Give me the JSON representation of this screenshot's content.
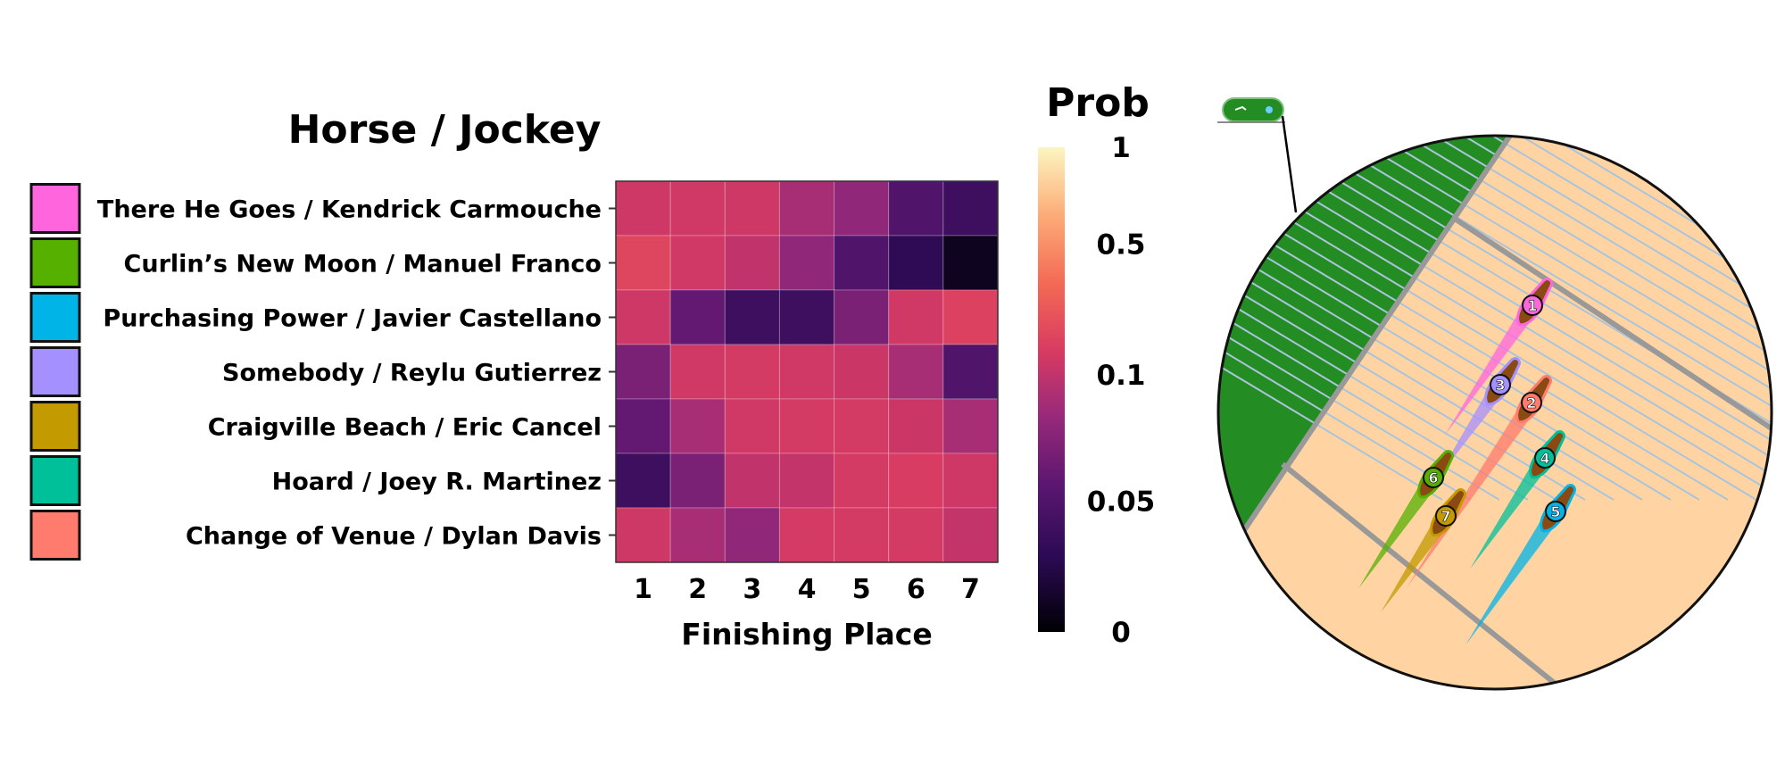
{
  "chart_data": {
    "type": "heatmap",
    "title": "Horse / Jockey",
    "xlabel": "Finishing Place",
    "x": [
      "1",
      "2",
      "3",
      "4",
      "5",
      "6",
      "7"
    ],
    "rows": [
      {
        "label": "There He Goes / Kendrick Carmouche",
        "swatch": "#ff66dd",
        "values": [
          0.14,
          0.15,
          0.14,
          0.09,
          0.08,
          0.05,
          0.04
        ]
      },
      {
        "label": "Curlin’s New Moon / Manuel Franco",
        "swatch": "#55b000",
        "values": [
          0.22,
          0.15,
          0.1,
          0.08,
          0.05,
          0.03,
          0.01
        ]
      },
      {
        "label": "Purchasing Power / Javier Castellano",
        "swatch": "#00b4e8",
        "values": [
          0.14,
          0.06,
          0.04,
          0.04,
          0.07,
          0.15,
          0.2
        ]
      },
      {
        "label": "Somebody / Reylu Gutierrez",
        "swatch": "#a590ff",
        "values": [
          0.07,
          0.15,
          0.16,
          0.15,
          0.13,
          0.09,
          0.05
        ]
      },
      {
        "label": "Craigville Beach / Eric Cancel",
        "swatch": "#c39a00",
        "values": [
          0.06,
          0.09,
          0.15,
          0.16,
          0.16,
          0.13,
          0.09
        ]
      },
      {
        "label": "Hoard / Joey R. Martinez",
        "swatch": "#00c09a",
        "values": [
          0.04,
          0.07,
          0.1,
          0.11,
          0.16,
          0.18,
          0.14
        ]
      },
      {
        "label": "Change of Venue / Dylan Davis",
        "swatch": "#ff7b6e",
        "values": [
          0.14,
          0.09,
          0.08,
          0.16,
          0.16,
          0.16,
          0.11
        ]
      }
    ],
    "colorbar": {
      "title": "Prob",
      "ticks": [
        {
          "label": "1",
          "value": 1
        },
        {
          "label": "0.5",
          "value": 0.5
        },
        {
          "label": "0.1",
          "value": 0.1
        },
        {
          "label": "0.05",
          "value": 0.05
        },
        {
          "label": "0",
          "value": 0
        }
      ]
    }
  },
  "track_view": {
    "infield_color": "#238c22",
    "track_color": "#ffd4a2",
    "horses": [
      {
        "number": "1",
        "color": "#ff66dd"
      },
      {
        "number": "2",
        "color": "#ff7b6e"
      },
      {
        "number": "3",
        "color": "#a590ff"
      },
      {
        "number": "4",
        "color": "#00c09a"
      },
      {
        "number": "5",
        "color": "#00b4e8"
      },
      {
        "number": "6",
        "color": "#55b000"
      },
      {
        "number": "7",
        "color": "#c39a00"
      }
    ]
  }
}
